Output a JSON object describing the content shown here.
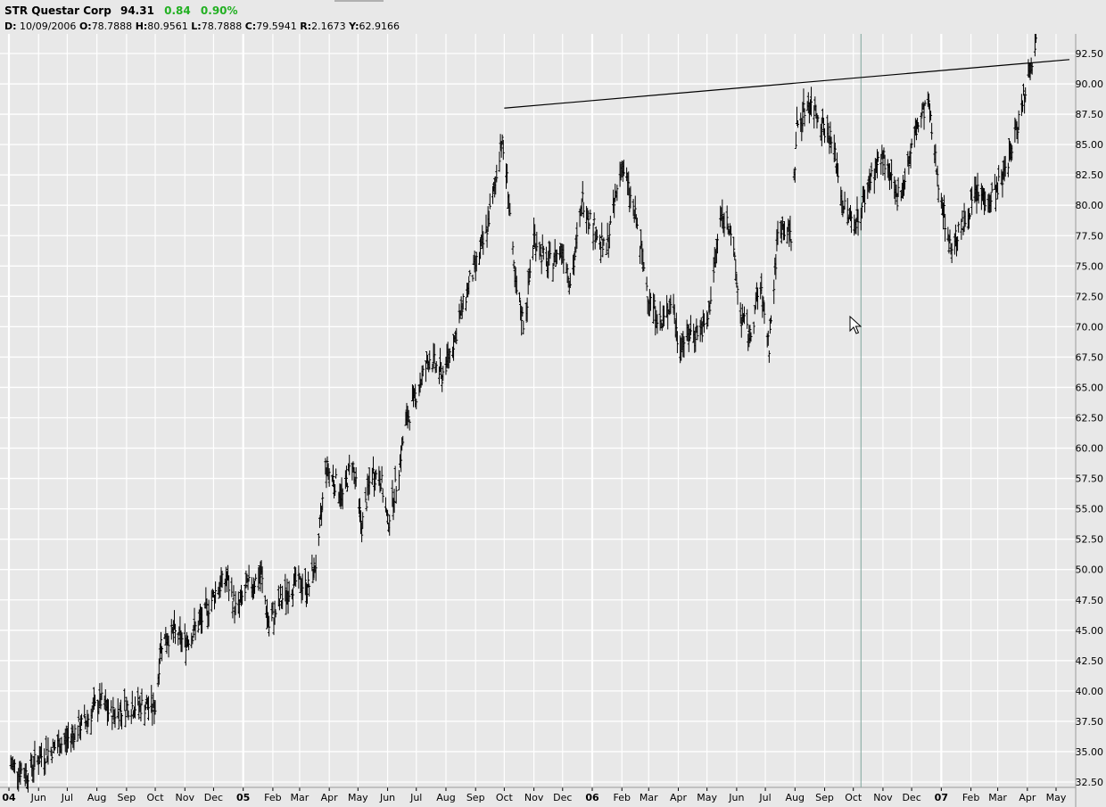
{
  "header": {
    "symbol": "STR",
    "name": "Questar Corp",
    "last": "94.31",
    "change": "0.84",
    "change_pct": "0.90%",
    "change_color": "#22b022",
    "ohlc": {
      "d_label": "D:",
      "d_value": "10/09/2006",
      "o_label": "O:",
      "o_value": "78.7888",
      "h_label": "H:",
      "h_value": "80.9561",
      "l_label": "L:",
      "l_value": "78.7888",
      "c_label": "C:",
      "c_value": "79.5941",
      "r_label": "R:",
      "r_value": "2.1673",
      "y_label": "Y:",
      "y_value": "62.9166"
    }
  },
  "chart_data": {
    "type": "ohlc",
    "title": "STR Questar Corp",
    "ylim": [
      32.5,
      92.5
    ],
    "y_ticks": [
      "32.50",
      "35.00",
      "37.50",
      "40.00",
      "42.50",
      "45.00",
      "47.50",
      "50.00",
      "52.50",
      "55.00",
      "57.50",
      "60.00",
      "62.50",
      "65.00",
      "67.50",
      "70.00",
      "72.50",
      "75.00",
      "77.50",
      "80.00",
      "82.50",
      "85.00",
      "87.50",
      "90.00",
      "92.50"
    ],
    "x_ticks": [
      {
        "label": "04",
        "bold": true
      },
      {
        "label": "Jun"
      },
      {
        "label": "Jul"
      },
      {
        "label": "Aug"
      },
      {
        "label": "Sep"
      },
      {
        "label": "Oct"
      },
      {
        "label": "Nov"
      },
      {
        "label": "Dec"
      },
      {
        "label": "05",
        "bold": true
      },
      {
        "label": "Feb"
      },
      {
        "label": "Mar"
      },
      {
        "label": "Apr"
      },
      {
        "label": "May"
      },
      {
        "label": "Jun"
      },
      {
        "label": "Jul"
      },
      {
        "label": "Aug"
      },
      {
        "label": "Sep"
      },
      {
        "label": "Oct"
      },
      {
        "label": "Nov"
      },
      {
        "label": "Dec"
      },
      {
        "label": "06",
        "bold": true
      },
      {
        "label": "Feb"
      },
      {
        "label": "Mar"
      },
      {
        "label": "Apr"
      },
      {
        "label": "May"
      },
      {
        "label": "Jun"
      },
      {
        "label": "Jul"
      },
      {
        "label": "Aug"
      },
      {
        "label": "Sep"
      },
      {
        "label": "Oct"
      },
      {
        "label": "Nov"
      },
      {
        "label": "Dec"
      },
      {
        "label": "07",
        "bold": true
      },
      {
        "label": "Feb"
      },
      {
        "label": "Mar"
      },
      {
        "label": "Apr"
      },
      {
        "label": "May"
      }
    ],
    "series": [
      {
        "type": "ohlc",
        "close_path": [
          [
            "2004-05-01",
            34.0
          ],
          [
            "2004-05-20",
            33.2
          ],
          [
            "2004-06-01",
            34.5
          ],
          [
            "2004-06-15",
            35.2
          ],
          [
            "2004-07-01",
            36.0
          ],
          [
            "2004-07-20",
            37.5
          ],
          [
            "2004-08-05",
            39.2
          ],
          [
            "2004-08-15",
            38.0
          ],
          [
            "2004-09-01",
            38.7
          ],
          [
            "2004-09-20",
            38.8
          ],
          [
            "2004-10-01",
            38.6
          ],
          [
            "2004-10-07",
            44.0
          ],
          [
            "2004-10-20",
            44.8
          ],
          [
            "2004-11-01",
            44.0
          ],
          [
            "2004-11-20",
            46.0
          ],
          [
            "2004-12-05",
            48.5
          ],
          [
            "2004-12-15",
            49.2
          ],
          [
            "2004-12-25",
            46.5
          ],
          [
            "2005-01-05",
            48.5
          ],
          [
            "2005-01-20",
            49.5
          ],
          [
            "2005-01-28",
            45.3
          ],
          [
            "2005-02-10",
            47.5
          ],
          [
            "2005-02-25",
            49.0
          ],
          [
            "2005-03-10",
            48.5
          ],
          [
            "2005-03-20",
            51.0
          ],
          [
            "2005-03-28",
            58.5
          ],
          [
            "2005-04-05",
            57.5
          ],
          [
            "2005-04-15",
            56.0
          ],
          [
            "2005-04-25",
            59.0
          ],
          [
            "2005-05-05",
            53.5
          ],
          [
            "2005-05-15",
            58.0
          ],
          [
            "2005-05-25",
            57.5
          ],
          [
            "2005-06-01",
            53.8
          ],
          [
            "2005-06-10",
            57.0
          ],
          [
            "2005-06-20",
            62.0
          ],
          [
            "2005-07-01",
            64.5
          ],
          [
            "2005-07-15",
            67.5
          ],
          [
            "2005-07-28",
            66.0
          ],
          [
            "2005-08-10",
            69.0
          ],
          [
            "2005-08-25",
            73.5
          ],
          [
            "2005-09-10",
            77.0
          ],
          [
            "2005-09-20",
            81.0
          ],
          [
            "2005-09-28",
            85.5
          ],
          [
            "2005-10-05",
            81.5
          ],
          [
            "2005-10-12",
            73.5
          ],
          [
            "2005-10-22",
            70.0
          ],
          [
            "2005-11-01",
            77.5
          ],
          [
            "2005-11-15",
            75.0
          ],
          [
            "2005-12-01",
            76.5
          ],
          [
            "2005-12-10",
            73.5
          ],
          [
            "2005-12-22",
            80.5
          ],
          [
            "2006-01-01",
            78.5
          ],
          [
            "2006-01-15",
            76.0
          ],
          [
            "2006-02-01",
            83.5
          ],
          [
            "2006-02-15",
            79.0
          ],
          [
            "2006-03-01",
            72.5
          ],
          [
            "2006-03-15",
            70.0
          ],
          [
            "2006-03-25",
            72.5
          ],
          [
            "2006-04-01",
            68.5
          ],
          [
            "2006-04-15",
            69.5
          ],
          [
            "2006-05-01",
            70.0
          ],
          [
            "2006-05-15",
            79.0
          ],
          [
            "2006-05-25",
            78.5
          ],
          [
            "2006-06-05",
            71.0
          ],
          [
            "2006-06-15",
            69.0
          ],
          [
            "2006-06-25",
            73.5
          ],
          [
            "2006-07-05",
            68.5
          ],
          [
            "2006-07-15",
            78.5
          ],
          [
            "2006-07-28",
            77.5
          ],
          [
            "2006-08-03",
            86.5
          ],
          [
            "2006-08-15",
            88.5
          ],
          [
            "2006-08-25",
            87.5
          ],
          [
            "2006-09-10",
            85.0
          ],
          [
            "2006-09-20",
            80.0
          ],
          [
            "2006-10-01",
            78.5
          ],
          [
            "2006-10-09",
            79.6
          ],
          [
            "2006-10-20",
            82.5
          ],
          [
            "2006-11-01",
            84.0
          ],
          [
            "2006-11-15",
            80.5
          ],
          [
            "2006-11-25",
            82.5
          ],
          [
            "2006-12-05",
            86.0
          ],
          [
            "2006-12-18",
            88.5
          ],
          [
            "2006-12-28",
            82.5
          ],
          [
            "2007-01-10",
            76.5
          ],
          [
            "2007-01-25",
            78.5
          ],
          [
            "2007-02-05",
            81.0
          ],
          [
            "2007-02-20",
            80.5
          ],
          [
            "2007-03-05",
            82.0
          ],
          [
            "2007-03-20",
            86.0
          ],
          [
            "2007-04-01",
            90.5
          ],
          [
            "2007-04-10",
            93.5
          ]
        ]
      }
    ],
    "trendline": {
      "from": [
        "2005-10-01",
        88.0
      ],
      "to": [
        "2007-05-15",
        92.0
      ]
    },
    "highlight_date": "2006-10-09",
    "grid": true
  }
}
